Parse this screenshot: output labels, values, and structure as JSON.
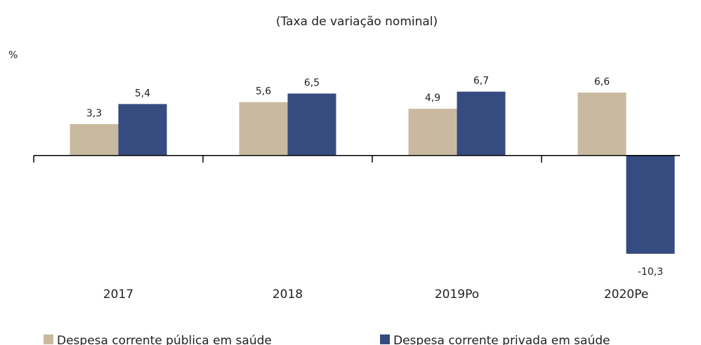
{
  "chart_data": {
    "type": "bar",
    "title": "(Taxa de variação nominal)",
    "y_label": "%",
    "categories": [
      "2017",
      "2018",
      "2019Po",
      "2020Pe"
    ],
    "series": [
      {
        "name": "Despesa corrente pública em saúde",
        "color": "#c9b9a0",
        "values": [
          3.3,
          5.6,
          4.9,
          6.6
        ],
        "value_labels": [
          "3,3",
          "5,6",
          "4,9",
          "6,6"
        ]
      },
      {
        "name": "Despesa corrente privada em saúde",
        "color": "#364b7f",
        "values": [
          5.4,
          6.5,
          6.7,
          -10.3
        ],
        "value_labels": [
          "5,4",
          "6,5",
          "6,7",
          "-10,3"
        ]
      }
    ],
    "ylim": [
      -12,
      8
    ],
    "grid": false
  }
}
